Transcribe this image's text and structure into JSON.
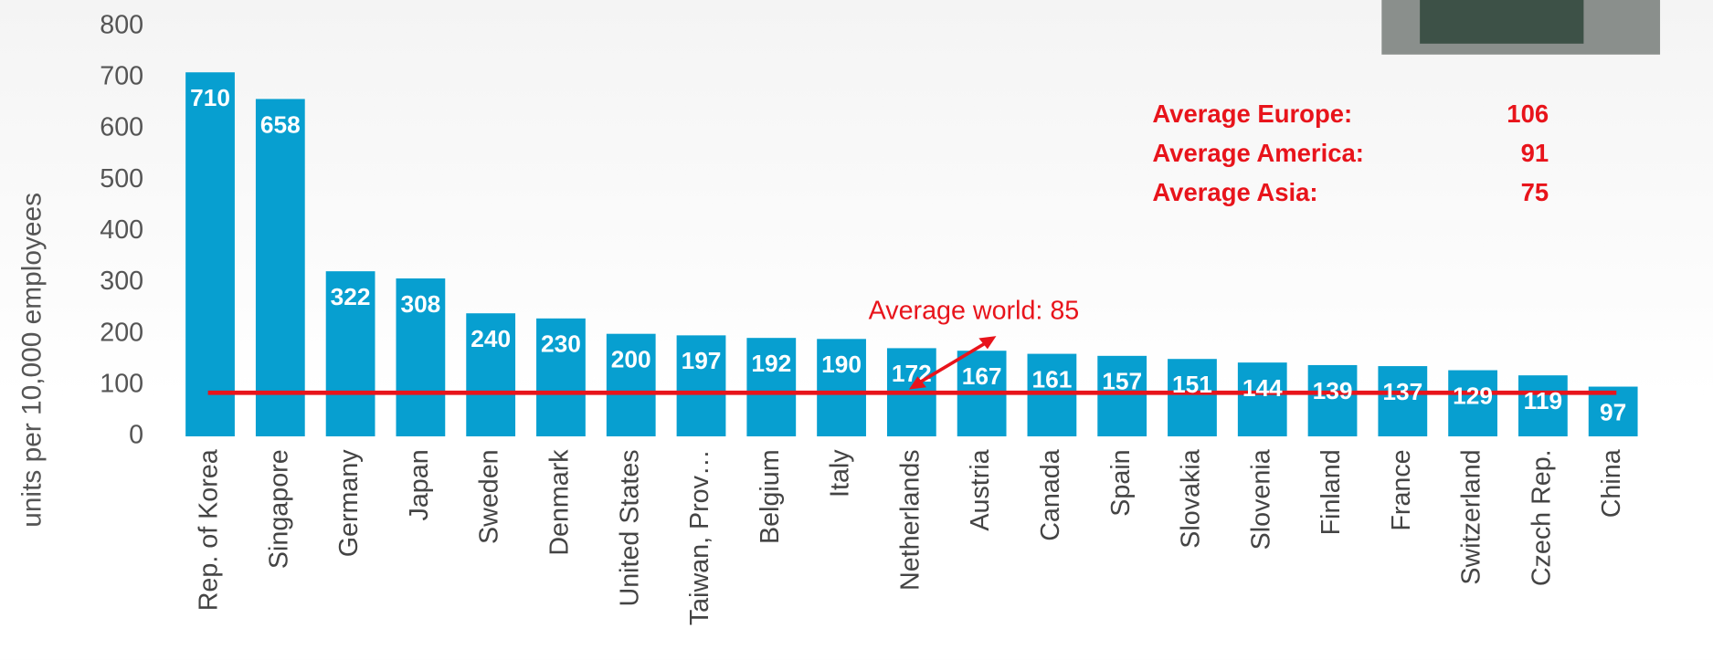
{
  "chart_data": {
    "type": "bar",
    "y_label": "units per 10,000 employees",
    "categories": [
      "Rep. of Korea",
      "Singapore",
      "Germany",
      "Japan",
      "Sweden",
      "Denmark",
      "United States",
      "Taiwan, Prov…",
      "Belgium",
      "Italy",
      "Netherlands",
      "Austria",
      "Canada",
      "Spain",
      "Slovakia",
      "Slovenia",
      "Finland",
      "France",
      "Switzerland",
      "Czech Rep.",
      "China"
    ],
    "values": [
      710,
      658,
      322,
      308,
      240,
      230,
      200,
      197,
      192,
      190,
      172,
      167,
      161,
      157,
      151,
      144,
      139,
      137,
      129,
      119,
      97
    ],
    "color": "#079fd0",
    "ylim": [
      0,
      800
    ],
    "yticks": [
      0,
      100,
      200,
      300,
      400,
      500,
      600,
      700,
      800
    ],
    "reference_line": {
      "label": "Average world: 85",
      "value": 85,
      "color": "#e8141b"
    },
    "averages": [
      {
        "label": "Average Europe:",
        "value": 106
      },
      {
        "label": "Average America:",
        "value": 91
      },
      {
        "label": "Average Asia:",
        "value": 75
      }
    ]
  }
}
